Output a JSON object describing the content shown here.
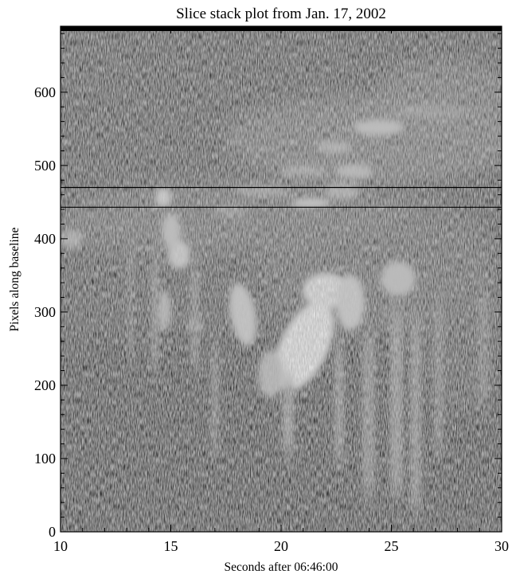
{
  "chart_data": {
    "type": "heatmap",
    "title": "Slice stack plot from Jan. 17, 2002",
    "xlabel": "Seconds after 06:46:00",
    "ylabel": "Pixels along baseline",
    "xlim": [
      10,
      30
    ],
    "ylim": [
      0,
      690
    ],
    "x_ticks": [
      10,
      15,
      20,
      25,
      30
    ],
    "y_ticks": [
      0,
      100,
      200,
      300,
      400,
      500,
      600
    ],
    "x_tick_labels": [
      "10",
      "15",
      "20",
      "25",
      "30"
    ],
    "y_tick_labels": [
      "0",
      "100",
      "200",
      "300",
      "400",
      "500",
      "600"
    ],
    "colormap": "grayscale",
    "horizontal_lines": [
      470,
      443
    ],
    "grid": false
  }
}
